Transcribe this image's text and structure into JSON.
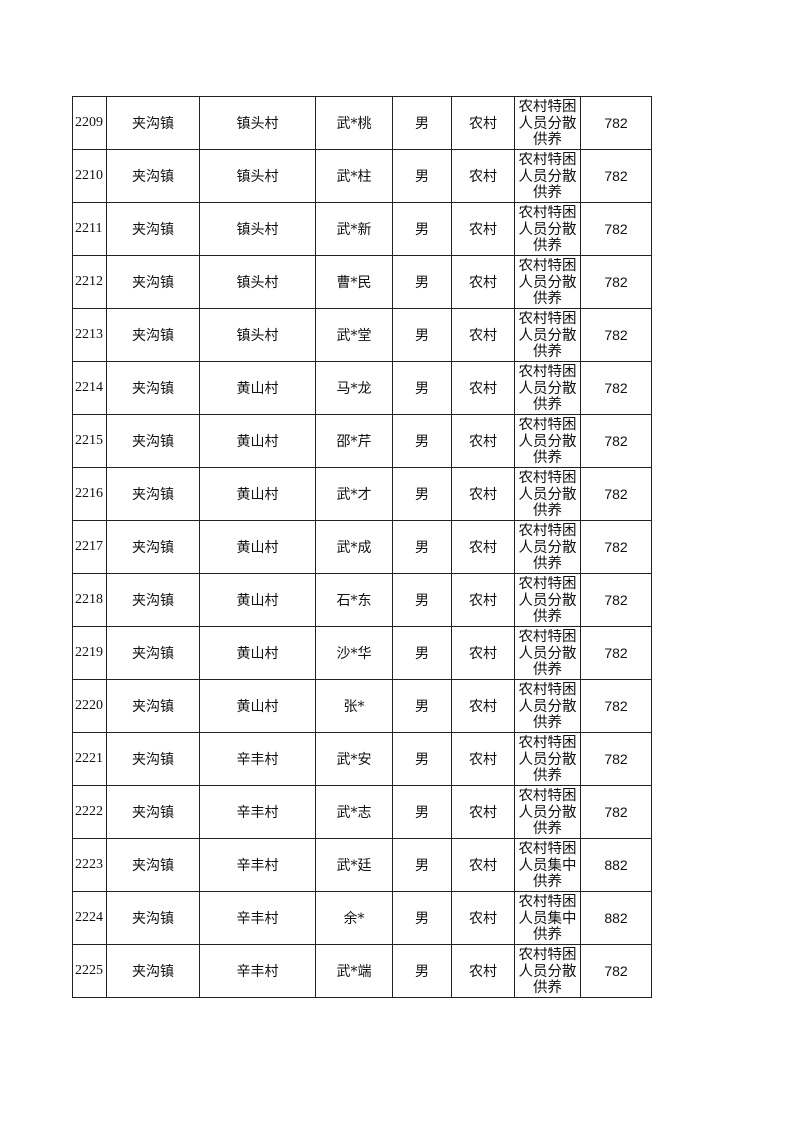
{
  "rows": [
    {
      "no": "2209",
      "town": "夹沟镇",
      "village": "镇头村",
      "name": "武*桃",
      "gender": "男",
      "area": "农村",
      "type": "农村特困人员分散供养",
      "amount": "782"
    },
    {
      "no": "2210",
      "town": "夹沟镇",
      "village": "镇头村",
      "name": "武*柱",
      "gender": "男",
      "area": "农村",
      "type": "农村特困人员分散供养",
      "amount": "782"
    },
    {
      "no": "2211",
      "town": "夹沟镇",
      "village": "镇头村",
      "name": "武*新",
      "gender": "男",
      "area": "农村",
      "type": "农村特困人员分散供养",
      "amount": "782"
    },
    {
      "no": "2212",
      "town": "夹沟镇",
      "village": "镇头村",
      "name": "曹*民",
      "gender": "男",
      "area": "农村",
      "type": "农村特困人员分散供养",
      "amount": "782"
    },
    {
      "no": "2213",
      "town": "夹沟镇",
      "village": "镇头村",
      "name": "武*堂",
      "gender": "男",
      "area": "农村",
      "type": "农村特困人员分散供养",
      "amount": "782"
    },
    {
      "no": "2214",
      "town": "夹沟镇",
      "village": "黄山村",
      "name": "马*龙",
      "gender": "男",
      "area": "农村",
      "type": "农村特困人员分散供养",
      "amount": "782"
    },
    {
      "no": "2215",
      "town": "夹沟镇",
      "village": "黄山村",
      "name": "邵*芹",
      "gender": "男",
      "area": "农村",
      "type": "农村特困人员分散供养",
      "amount": "782"
    },
    {
      "no": "2216",
      "town": "夹沟镇",
      "village": "黄山村",
      "name": "武*才",
      "gender": "男",
      "area": "农村",
      "type": "农村特困人员分散供养",
      "amount": "782"
    },
    {
      "no": "2217",
      "town": "夹沟镇",
      "village": "黄山村",
      "name": "武*成",
      "gender": "男",
      "area": "农村",
      "type": "农村特困人员分散供养",
      "amount": "782"
    },
    {
      "no": "2218",
      "town": "夹沟镇",
      "village": "黄山村",
      "name": "石*东",
      "gender": "男",
      "area": "农村",
      "type": "农村特困人员分散供养",
      "amount": "782"
    },
    {
      "no": "2219",
      "town": "夹沟镇",
      "village": "黄山村",
      "name": "沙*华",
      "gender": "男",
      "area": "农村",
      "type": "农村特困人员分散供养",
      "amount": "782"
    },
    {
      "no": "2220",
      "town": "夹沟镇",
      "village": "黄山村",
      "name": "张*",
      "gender": "男",
      "area": "农村",
      "type": "农村特困人员分散供养",
      "amount": "782"
    },
    {
      "no": "2221",
      "town": "夹沟镇",
      "village": "辛丰村",
      "name": "武*安",
      "gender": "男",
      "area": "农村",
      "type": "农村特困人员分散供养",
      "amount": "782"
    },
    {
      "no": "2222",
      "town": "夹沟镇",
      "village": "辛丰村",
      "name": "武*志",
      "gender": "男",
      "area": "农村",
      "type": "农村特困人员分散供养",
      "amount": "782"
    },
    {
      "no": "2223",
      "town": "夹沟镇",
      "village": "辛丰村",
      "name": "武*廷",
      "gender": "男",
      "area": "农村",
      "type": "农村特困人员集中供养",
      "amount": "882"
    },
    {
      "no": "2224",
      "town": "夹沟镇",
      "village": "辛丰村",
      "name": "余*",
      "gender": "男",
      "area": "农村",
      "type": "农村特困人员集中供养",
      "amount": "882"
    },
    {
      "no": "2225",
      "town": "夹沟镇",
      "village": "辛丰村",
      "name": "武*端",
      "gender": "男",
      "area": "农村",
      "type": "农村特困人员分散供养",
      "amount": "782"
    }
  ]
}
